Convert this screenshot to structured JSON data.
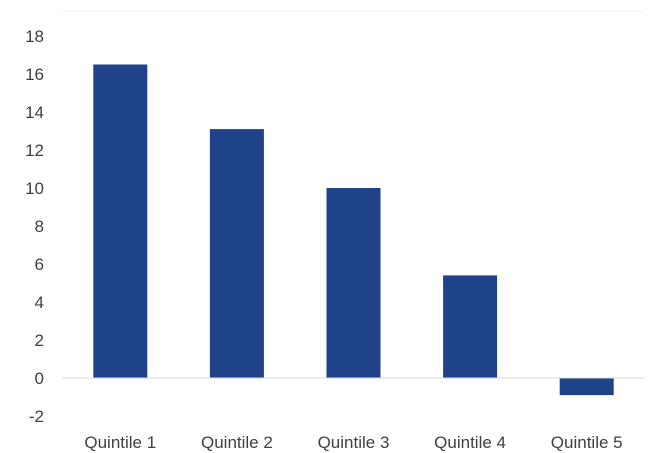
{
  "chart_data": {
    "type": "bar",
    "categories": [
      "Quintile 1",
      "Quintile 2",
      "Quintile 3",
      "Quintile 4",
      "Quintile 5"
    ],
    "values": [
      16.5,
      13.1,
      10.0,
      5.4,
      -0.9
    ],
    "title": "",
    "xlabel": "",
    "ylabel": "",
    "ylim": [
      -2,
      18
    ],
    "yticks": [
      "-2",
      "0",
      "2",
      "4",
      "6",
      "8",
      "10",
      "12",
      "14",
      "16",
      "18"
    ],
    "grid": false,
    "legend": "none",
    "bar_color": "#1f4388"
  }
}
